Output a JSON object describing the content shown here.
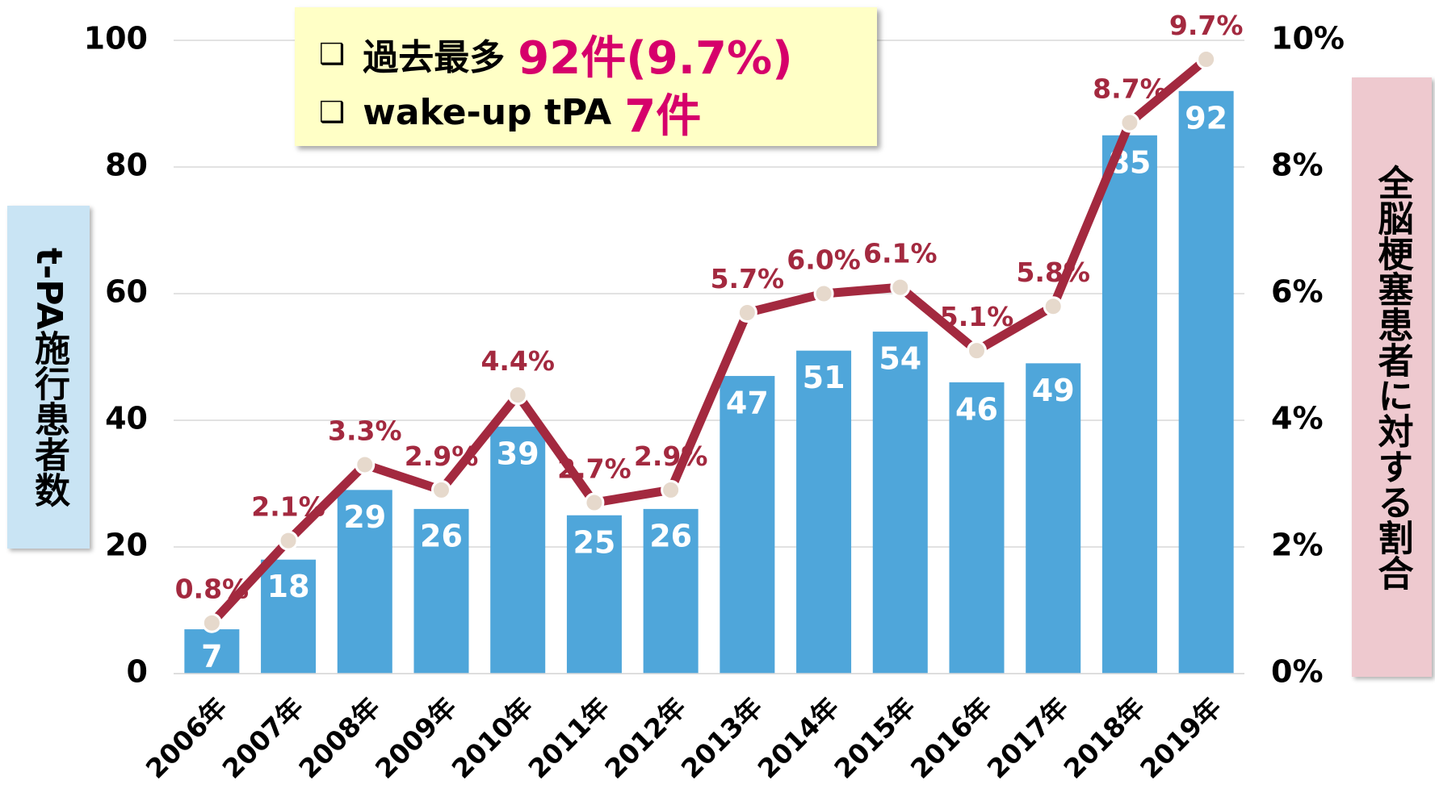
{
  "chart_data": {
    "type": "bar",
    "categories": [
      "2006年",
      "2007年",
      "2008年",
      "2009年",
      "2010年",
      "2011年",
      "2012年",
      "2013年",
      "2014年",
      "2015年",
      "2016年",
      "2017年",
      "2018年",
      "2019年"
    ],
    "series": [
      {
        "type": "bar",
        "color": "#4fa6da",
        "values": [
          7,
          18,
          29,
          26,
          39,
          25,
          26,
          47,
          51,
          54,
          46,
          49,
          85,
          92
        ]
      },
      {
        "type": "line",
        "axis": "y2",
        "color": "#a3293f",
        "values": [
          0.8,
          2.1,
          3.3,
          2.9,
          4.4,
          2.7,
          2.9,
          5.7,
          6.0,
          6.1,
          5.1,
          5.8,
          8.7,
          9.7
        ],
        "value_labels": [
          "0.8%",
          "2.1%",
          "3.3%",
          "2.9%",
          "4.4%",
          "2.7%",
          "2.9%",
          "5.7%",
          "6.0%",
          "6.1%",
          "5.1%",
          "5.8%",
          "8.7%",
          "9.7%"
        ]
      }
    ],
    "ylim": [
      0,
      100
    ],
    "yticks": [
      0,
      20,
      40,
      60,
      80,
      100
    ],
    "y2lim": [
      0,
      10
    ],
    "y2ticks": [
      {
        "value": 0,
        "label": "0%"
      },
      {
        "value": 2,
        "label": "2%"
      },
      {
        "value": 4,
        "label": "4%"
      },
      {
        "value": 6,
        "label": "6%"
      },
      {
        "value": 8,
        "label": "8%"
      },
      {
        "value": 10,
        "label": "10%"
      }
    ],
    "ylabel": "t-PA施行患者数",
    "y2label": "全脳梗塞患者に対する割合",
    "grid": true,
    "annotations": [
      {
        "text": "過去最多",
        "highlight": "92件(9.7%)"
      },
      {
        "text": "wake-up tPA",
        "highlight": "7件"
      }
    ]
  }
}
